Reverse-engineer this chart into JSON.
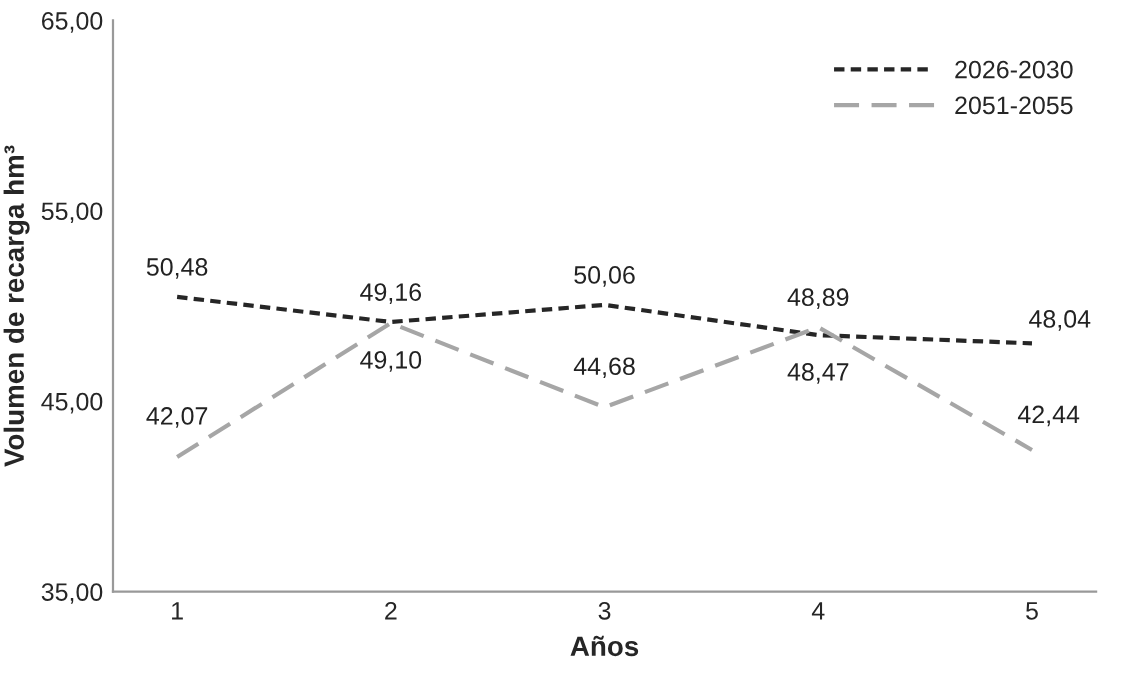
{
  "chart_data": {
    "type": "line",
    "xlabel": "Años",
    "ylabel": "Volumen de recarga hm³",
    "categories": [
      "1",
      "2",
      "3",
      "4",
      "5"
    ],
    "series": [
      {
        "name": "2026-2030",
        "color": "#262626",
        "line_style": "dotted",
        "values": [
          50.48,
          49.16,
          50.06,
          48.47,
          48.04
        ],
        "value_labels": [
          "50,48",
          "49,16",
          "50,06",
          "48,47",
          "48,04"
        ]
      },
      {
        "name": "2051-2055",
        "color": "#a6a6a6",
        "line_style": "dashed",
        "values": [
          42.07,
          49.1,
          44.68,
          48.89,
          42.44
        ],
        "value_labels": [
          "42,07",
          "49,10",
          "44,68",
          "48,89",
          "42,44"
        ]
      }
    ],
    "ylim": [
      35,
      65
    ],
    "yticks": [
      {
        "value": 35,
        "label": "35,00"
      },
      {
        "value": 45,
        "label": "45,00"
      },
      {
        "value": 55,
        "label": "55,00"
      },
      {
        "value": 65,
        "label": "65,00"
      }
    ],
    "grid": false,
    "legend": "top right",
    "marker": "none"
  }
}
